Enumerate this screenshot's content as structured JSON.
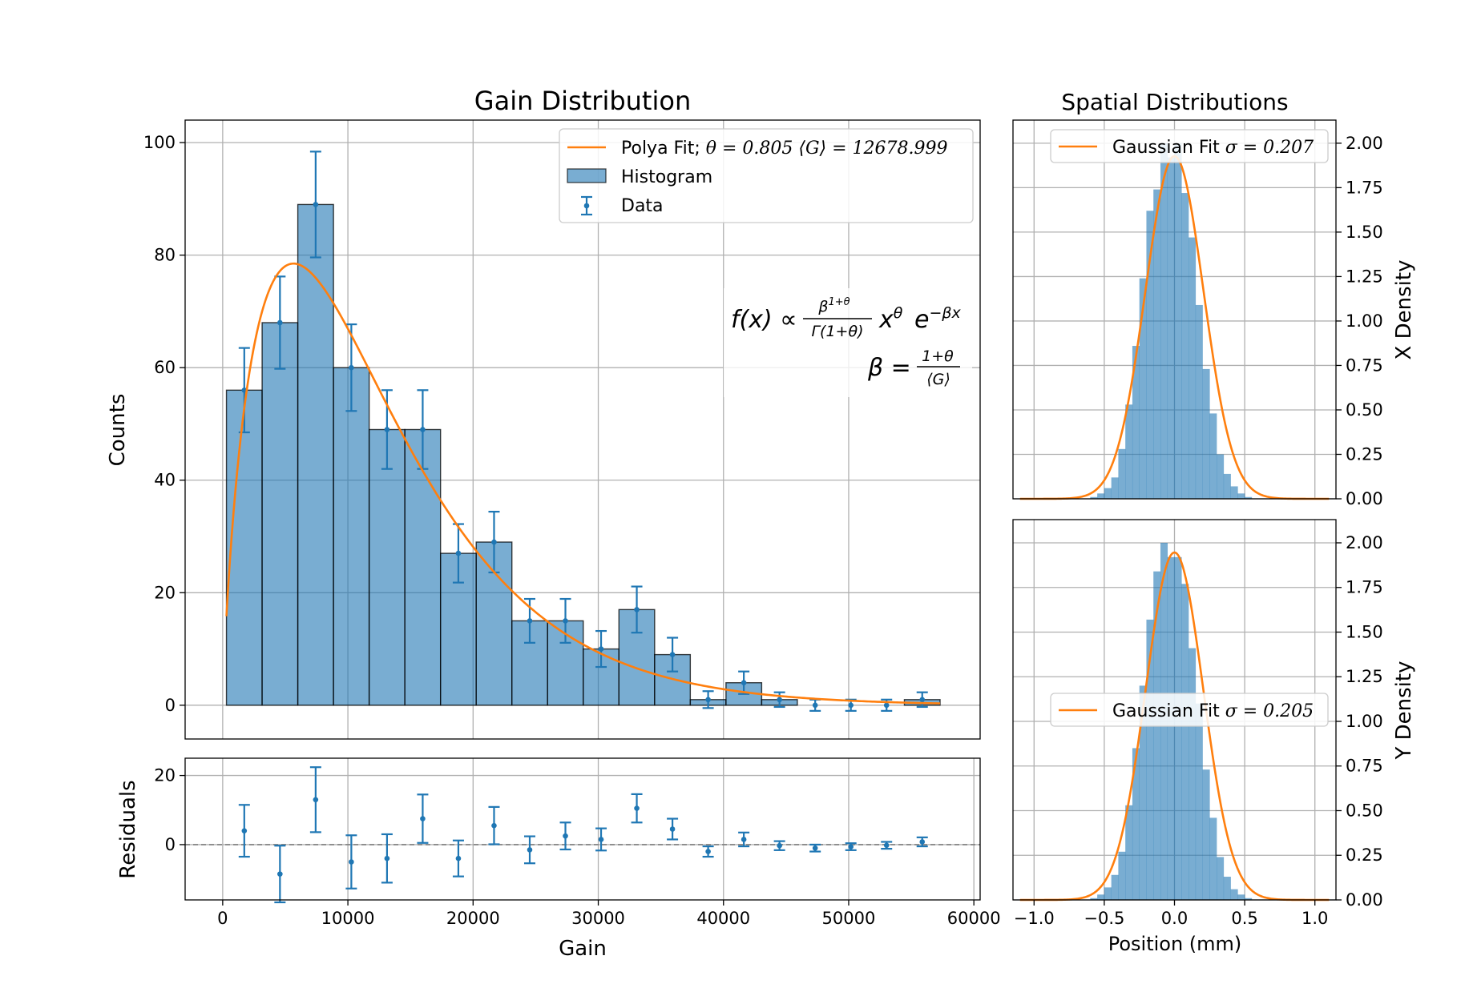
{
  "chart_data": [
    {
      "type": "bar",
      "title": "Gain Distribution",
      "xlabel": "",
      "ylabel": "Counts",
      "xlim": [
        -3000,
        60500
      ],
      "ylim": [
        -6,
        104
      ],
      "yticks": [
        0,
        20,
        40,
        60,
        80,
        100
      ],
      "grid": true,
      "legend_position": "top-right",
      "bin_edges": [
        300,
        3150,
        6000,
        8850,
        11700,
        14550,
        17400,
        20250,
        23100,
        25950,
        28800,
        31650,
        34500,
        37350,
        40200,
        43050,
        45900,
        48750,
        51600,
        54450,
        57300
      ],
      "counts": [
        56,
        68,
        89,
        60,
        49,
        49,
        27,
        29,
        15,
        15,
        10,
        17,
        9,
        1,
        4,
        1,
        0,
        0,
        0,
        1
      ],
      "data_points": {
        "x": [
          1725,
          4575,
          7425,
          10275,
          13125,
          15975,
          18825,
          21675,
          24525,
          27375,
          30225,
          33075,
          35925,
          38775,
          41625,
          44475,
          47325,
          50175,
          53025,
          55875
        ],
        "y": [
          56,
          68,
          89,
          60,
          49,
          49,
          27,
          29,
          15,
          15,
          10,
          17,
          9,
          1,
          4,
          1,
          0,
          0,
          0,
          1
        ],
        "yerr": [
          7.5,
          8.2,
          9.4,
          7.7,
          7.0,
          7.0,
          5.2,
          5.4,
          3.9,
          3.9,
          3.2,
          4.1,
          3.0,
          1.5,
          2.0,
          1.3,
          1.0,
          1.0,
          1.0,
          1.3
        ]
      },
      "fit": {
        "theta": 0.805,
        "mean_gain": 12678.999,
        "peak": 78.5
      },
      "legend": [
        {
          "label_prefix": "Polya Fit; ",
          "label_math": "θ = 0.805  ⟨G⟩ = 12678.999",
          "kind": "line",
          "color": "#ff7f0e"
        },
        {
          "label": "Histogram",
          "kind": "patch",
          "color": "#1f77b4"
        },
        {
          "label": "Data",
          "kind": "errorbar",
          "color": "#1f77b4"
        }
      ],
      "annotation": {
        "line1": {
          "lhs": "f(x) ∝",
          "num": "β",
          "num_sup": "1+θ",
          "den": "Γ(1+θ)",
          "x": "x",
          "x_sup": "θ",
          "e": "e",
          "e_sup": "−βx"
        },
        "line2": {
          "lhs": "β =",
          "num": "1+θ",
          "den": "⟨G⟩"
        }
      }
    },
    {
      "type": "scatter",
      "title": "",
      "xlabel": "Gain",
      "ylabel": "Residuals",
      "xlim": [
        -3000,
        60500
      ],
      "ylim": [
        -16,
        25
      ],
      "xticks": [
        0,
        10000,
        20000,
        30000,
        40000,
        50000,
        60000
      ],
      "yticks": [
        0,
        20
      ],
      "grid": true,
      "x": [
        1725,
        4575,
        7425,
        10275,
        13125,
        15975,
        18825,
        21675,
        24525,
        27375,
        30225,
        33075,
        35925,
        38775,
        41625,
        44475,
        47325,
        50175,
        53025,
        55875
      ],
      "y": [
        4,
        -8.5,
        13,
        -5,
        -4,
        7.5,
        -4,
        5.5,
        -1.5,
        2.5,
        1.5,
        10.5,
        4.5,
        -2,
        1.5,
        -0.3,
        -1,
        -0.6,
        -0.2,
        0.8
      ],
      "yerr": [
        7.5,
        8.2,
        9.4,
        7.7,
        7.0,
        7.0,
        5.2,
        5.4,
        3.9,
        3.9,
        3.2,
        4.1,
        3.0,
        1.5,
        2.0,
        1.3,
        1.0,
        1.0,
        1.0,
        1.3
      ]
    },
    {
      "type": "bar",
      "title": "Spatial Distributions",
      "xlabel": "",
      "ylabel": "X Density",
      "xlim": [
        -1.15,
        1.15
      ],
      "ylim": [
        0,
        2.13
      ],
      "yticks": [
        0.0,
        0.25,
        0.5,
        0.75,
        1.0,
        1.25,
        1.5,
        1.75,
        2.0
      ],
      "grid": true,
      "legend_position": "top-right",
      "bin_edges": [
        -0.6,
        -0.55,
        -0.5,
        -0.45,
        -0.4,
        -0.35,
        -0.3,
        -0.25,
        -0.2,
        -0.15,
        -0.1,
        -0.05,
        0.0,
        0.05,
        0.1,
        0.15,
        0.2,
        0.25,
        0.3,
        0.35,
        0.4,
        0.45,
        0.5,
        0.55,
        0.6
      ],
      "density": [
        0.01,
        0.03,
        0.06,
        0.12,
        0.28,
        0.53,
        0.86,
        1.24,
        1.62,
        1.74,
        2.0,
        1.92,
        2.0,
        1.72,
        1.47,
        1.09,
        0.73,
        0.48,
        0.25,
        0.14,
        0.07,
        0.03,
        0.01,
        0.0
      ],
      "fit": {
        "sigma": 0.207,
        "mu": 0.0
      },
      "legend": [
        {
          "label_prefix": "Gaussian Fit ",
          "label_math": "σ = 0.207",
          "kind": "line",
          "color": "#ff7f0e"
        }
      ]
    },
    {
      "type": "bar",
      "title": "",
      "xlabel": "Position (mm)",
      "ylabel": "Y Density",
      "xlim": [
        -1.15,
        1.15
      ],
      "ylim": [
        0,
        2.13
      ],
      "xticks": [
        -1.0,
        -0.5,
        0.0,
        0.5,
        1.0
      ],
      "yticks": [
        0.0,
        0.25,
        0.5,
        0.75,
        1.0,
        1.25,
        1.5,
        1.75,
        2.0
      ],
      "grid": true,
      "legend_position": "center-right",
      "bin_edges": [
        -0.6,
        -0.55,
        -0.5,
        -0.45,
        -0.4,
        -0.35,
        -0.3,
        -0.25,
        -0.2,
        -0.15,
        -0.1,
        -0.05,
        0.0,
        0.05,
        0.1,
        0.15,
        0.2,
        0.25,
        0.3,
        0.35,
        0.4,
        0.45,
        0.5,
        0.55,
        0.6
      ],
      "density": [
        0.01,
        0.03,
        0.07,
        0.14,
        0.27,
        0.53,
        0.85,
        1.2,
        1.57,
        1.84,
        2.0,
        1.92,
        1.92,
        1.77,
        1.41,
        1.1,
        0.73,
        0.46,
        0.24,
        0.13,
        0.06,
        0.03,
        0.01,
        0.0
      ],
      "fit": {
        "sigma": 0.205,
        "mu": 0.0
      },
      "legend": [
        {
          "label_prefix": "Gaussian Fit ",
          "label_math": "σ = 0.205",
          "kind": "line",
          "color": "#ff7f0e"
        }
      ]
    }
  ],
  "colors": {
    "bar": "#1f77b4",
    "fit": "#ff7f0e",
    "grid": "#b0b0b0"
  }
}
